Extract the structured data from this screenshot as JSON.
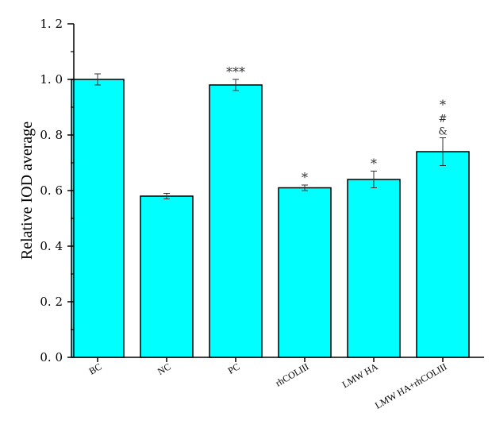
{
  "chart_data": {
    "type": "bar",
    "title": "",
    "xlabel": "",
    "ylabel": "Relative IOD average",
    "categories": [
      "BC",
      "NC",
      "PC",
      "rhCOLIII",
      "LMW  HA",
      "LMW HA+rhCOLIII"
    ],
    "series": [
      {
        "values": [
          1.0,
          0.58,
          0.98,
          0.61,
          0.64,
          0.74
        ],
        "errors": [
          0.02,
          0.01,
          0.02,
          0.01,
          0.03,
          0.05
        ]
      }
    ],
    "annotations": [
      [],
      [],
      [
        "***"
      ],
      [
        "*"
      ],
      [
        "*"
      ],
      [
        "&",
        "#",
        "*"
      ]
    ],
    "ylim": [
      0,
      1.2
    ],
    "yticks": [
      "0. 0",
      "0. 2",
      "0. 4",
      "0. 6",
      "0. 8",
      "1. 0",
      "1. 2"
    ],
    "bar_color": "#00FFFF",
    "grid": false,
    "legend": "none"
  }
}
